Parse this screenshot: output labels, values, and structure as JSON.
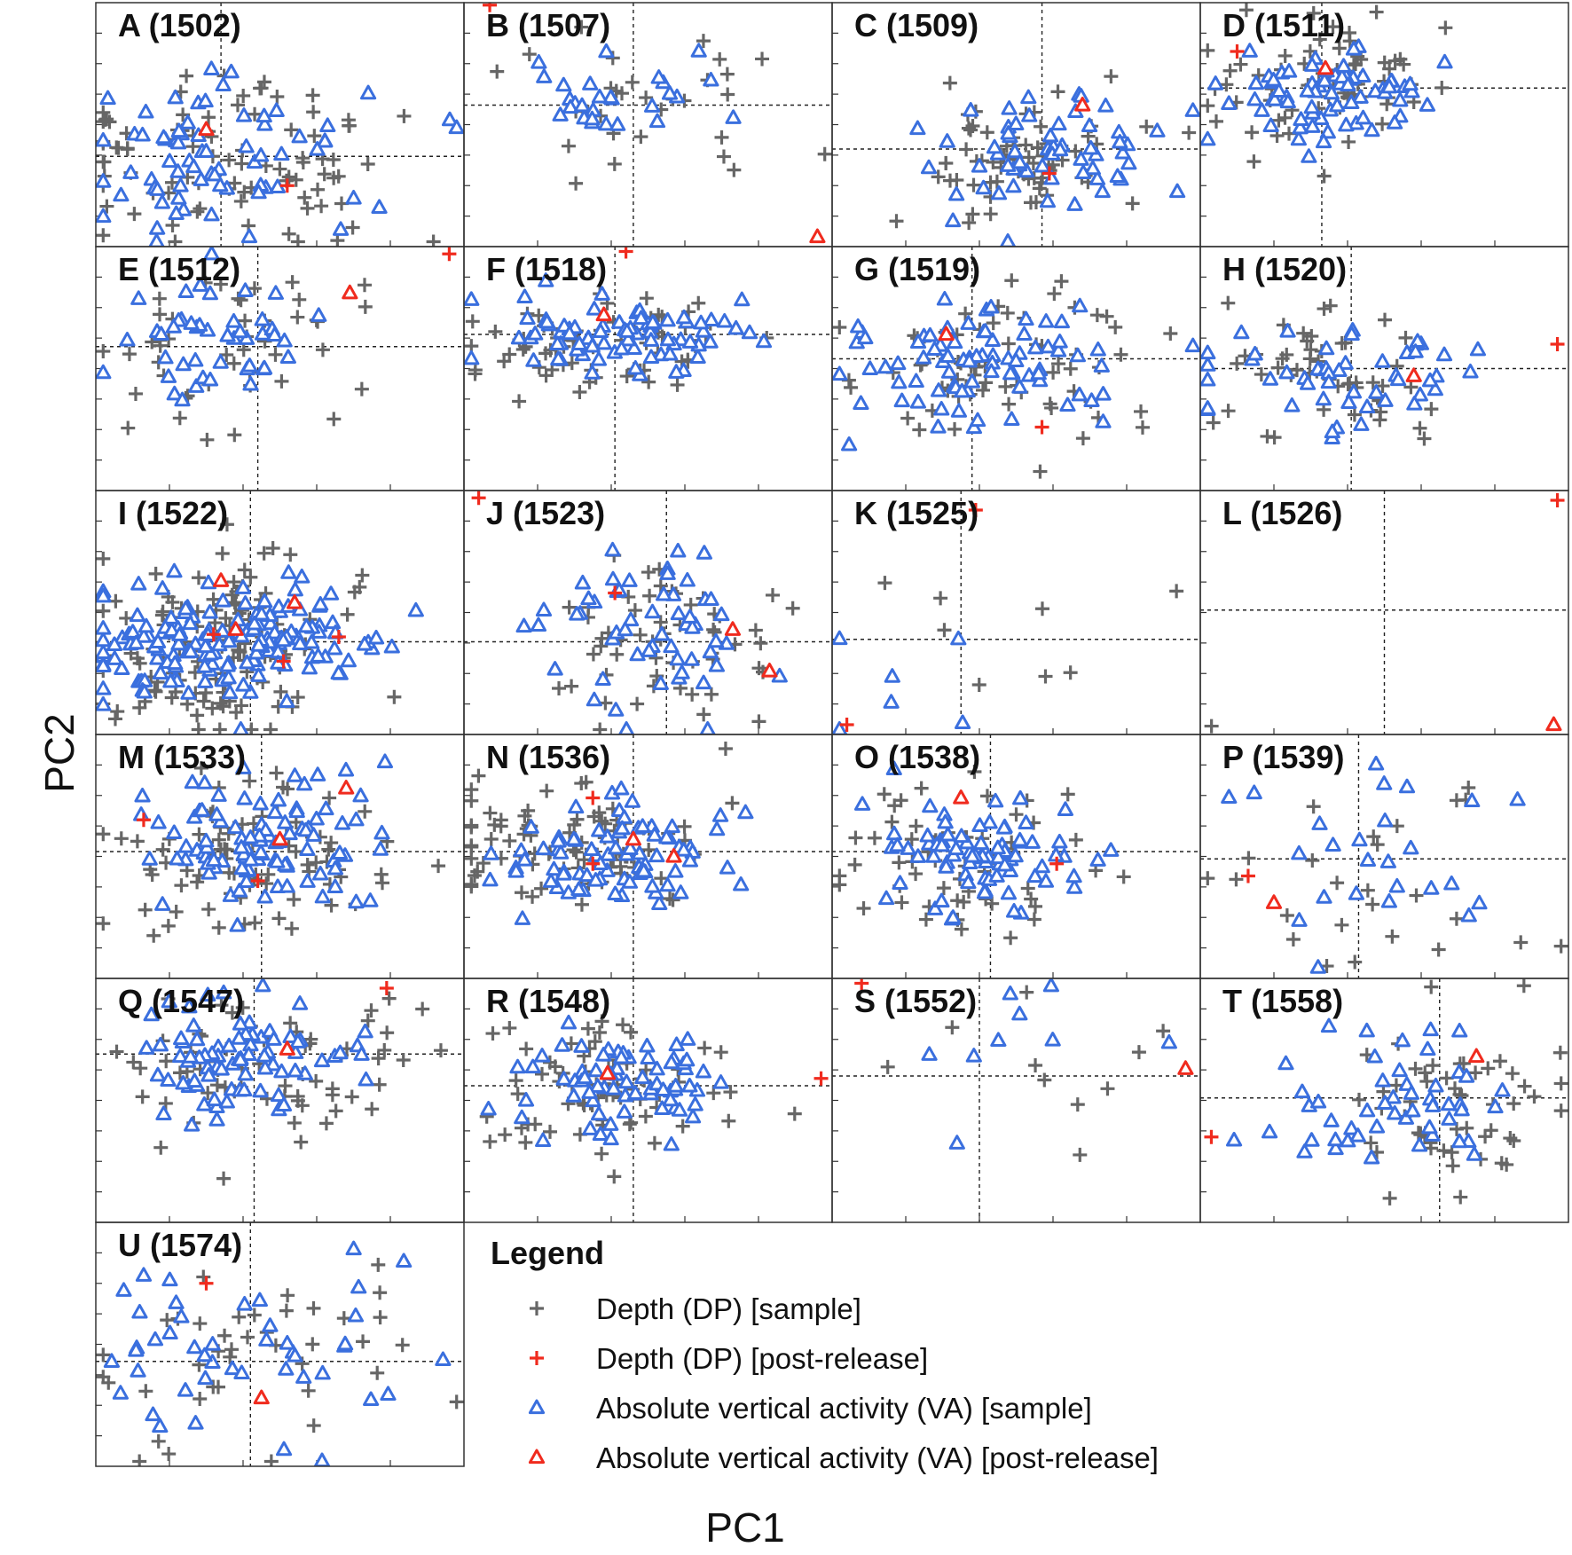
{
  "chart_data": {
    "type": "scatter",
    "xlabel": "PC1",
    "ylabel": "PC2",
    "legend": {
      "title": "Legend",
      "placement": "bottom-right",
      "entries": [
        {
          "key": "dp_sample",
          "label": "Depth (DP) [sample]",
          "marker": "plus",
          "color": "#666666"
        },
        {
          "key": "dp_post",
          "label": "Depth (DP) [post-release]",
          "marker": "plus",
          "color": "#f02b1e"
        },
        {
          "key": "va_sample",
          "label": "Absolute vertical activity (VA) [sample]",
          "marker": "triangle",
          "color": "#3a6fde"
        },
        {
          "key": "va_post",
          "label": "Absolute vertical activity (VA) [post-release]",
          "marker": "triangle",
          "color": "#f02b1e"
        }
      ]
    },
    "colors": {
      "dp_sample": "#666666",
      "va_sample": "#3a6fde",
      "post_release": "#f02b1e",
      "frame": "#333333",
      "guide": "#222222"
    },
    "panels": [
      {
        "label": "A (1502)",
        "origin": [
          0.34,
          0.63
        ],
        "dp": {
          "n": 90,
          "cx": 0.38,
          "cy": 0.63,
          "sx": 0.22,
          "sy": 0.18
        },
        "va": {
          "n": 70,
          "cx": 0.35,
          "cy": 0.62,
          "sx": 0.22,
          "sy": 0.15
        },
        "dp_post": [
          [
            0.52,
            0.75
          ]
        ],
        "va_post": [
          [
            0.3,
            0.52
          ]
        ]
      },
      {
        "label": "B (1507)",
        "origin": [
          0.46,
          0.42
        ],
        "dp": {
          "n": 30,
          "cx": 0.5,
          "cy": 0.4,
          "sx": 0.2,
          "sy": 0.15
        },
        "va": {
          "n": 28,
          "cx": 0.42,
          "cy": 0.4,
          "sx": 0.14,
          "sy": 0.08
        },
        "dp_post": [
          [
            0.07,
            0.01
          ]
        ],
        "va_post": [
          [
            0.96,
            0.96
          ]
        ]
      },
      {
        "label": "C (1509)",
        "origin": [
          0.57,
          0.6
        ],
        "dp": {
          "n": 70,
          "cx": 0.55,
          "cy": 0.62,
          "sx": 0.15,
          "sy": 0.12
        },
        "va": {
          "n": 60,
          "cx": 0.58,
          "cy": 0.6,
          "sx": 0.17,
          "sy": 0.13
        },
        "dp_post": [
          [
            0.59,
            0.7
          ]
        ],
        "va_post": [
          [
            0.68,
            0.42
          ]
        ]
      },
      {
        "label": "D (1511)",
        "origin": [
          0.33,
          0.35
        ],
        "dp": {
          "n": 70,
          "cx": 0.35,
          "cy": 0.35,
          "sx": 0.14,
          "sy": 0.13
        },
        "va": {
          "n": 70,
          "cx": 0.35,
          "cy": 0.37,
          "sx": 0.13,
          "sy": 0.1
        },
        "dp_post": [
          [
            0.1,
            0.2
          ]
        ],
        "va_post": [
          [
            0.34,
            0.27
          ]
        ]
      },
      {
        "label": "E (1512)",
        "origin": [
          0.44,
          0.41
        ],
        "dp": {
          "n": 45,
          "cx": 0.35,
          "cy": 0.4,
          "sx": 0.2,
          "sy": 0.18
        },
        "va": {
          "n": 45,
          "cx": 0.38,
          "cy": 0.42,
          "sx": 0.15,
          "sy": 0.15
        },
        "dp_post": [
          [
            0.96,
            0.03
          ]
        ],
        "va_post": [
          [
            0.69,
            0.19
          ]
        ]
      },
      {
        "label": "F (1518)",
        "origin": [
          0.41,
          0.36
        ],
        "dp": {
          "n": 70,
          "cx": 0.4,
          "cy": 0.4,
          "sx": 0.2,
          "sy": 0.1
        },
        "va": {
          "n": 80,
          "cx": 0.4,
          "cy": 0.37,
          "sx": 0.18,
          "sy": 0.07
        },
        "dp_post": [
          [
            0.44,
            0.02
          ]
        ],
        "va_post": [
          [
            0.38,
            0.28
          ]
        ]
      },
      {
        "label": "G (1519)",
        "origin": [
          0.38,
          0.46
        ],
        "dp": {
          "n": 70,
          "cx": 0.45,
          "cy": 0.47,
          "sx": 0.2,
          "sy": 0.17
        },
        "va": {
          "n": 80,
          "cx": 0.38,
          "cy": 0.46,
          "sx": 0.2,
          "sy": 0.14
        },
        "dp_post": [
          [
            0.57,
            0.74
          ]
        ],
        "va_post": [
          [
            0.31,
            0.36
          ]
        ]
      },
      {
        "label": "H (1520)",
        "origin": [
          0.41,
          0.5
        ],
        "dp": {
          "n": 50,
          "cx": 0.35,
          "cy": 0.5,
          "sx": 0.17,
          "sy": 0.12
        },
        "va": {
          "n": 50,
          "cx": 0.4,
          "cy": 0.52,
          "sx": 0.2,
          "sy": 0.12
        },
        "dp_post": [
          [
            0.97,
            0.4
          ]
        ],
        "va_post": [
          [
            0.58,
            0.53
          ]
        ]
      },
      {
        "label": "I (1522)",
        "origin": [
          0.42,
          0.62
        ],
        "dp": {
          "n": 130,
          "cx": 0.33,
          "cy": 0.62,
          "sx": 0.18,
          "sy": 0.17
        },
        "va": {
          "n": 160,
          "cx": 0.35,
          "cy": 0.63,
          "sx": 0.2,
          "sy": 0.12
        },
        "dp_post": [
          [
            0.32,
            0.59
          ],
          [
            0.51,
            0.7
          ],
          [
            0.66,
            0.6
          ]
        ],
        "va_post": [
          [
            0.34,
            0.37
          ],
          [
            0.38,
            0.57
          ],
          [
            0.54,
            0.46
          ]
        ]
      },
      {
        "label": "J (1523)",
        "origin": [
          0.55,
          0.62
        ],
        "dp": {
          "n": 55,
          "cx": 0.55,
          "cy": 0.6,
          "sx": 0.15,
          "sy": 0.18
        },
        "va": {
          "n": 55,
          "cx": 0.5,
          "cy": 0.58,
          "sx": 0.15,
          "sy": 0.17
        },
        "dp_post": [
          [
            0.04,
            0.03
          ],
          [
            0.41,
            0.42
          ]
        ],
        "va_post": [
          [
            0.73,
            0.57
          ],
          [
            0.83,
            0.74
          ]
        ]
      },
      {
        "label": "K (1525)",
        "origin": [
          0.35,
          0.61
        ],
        "dp": {
          "n": 8,
          "cx": 0.45,
          "cy": 0.6,
          "sx": 0.25,
          "sy": 0.2
        },
        "va": {
          "n": 6,
          "cx": 0.35,
          "cy": 0.65,
          "sx": 0.3,
          "sy": 0.25
        },
        "dp_post": [
          [
            0.04,
            0.96
          ],
          [
            0.39,
            0.08
          ]
        ],
        "va_post": []
      },
      {
        "label": "L (1526)",
        "origin": [
          0.5,
          0.49
        ],
        "dp": {
          "n": 1,
          "cx": 0.03,
          "cy": 0.97,
          "sx": 0.005,
          "sy": 0.005
        },
        "va": {
          "n": 0,
          "cx": 0.5,
          "cy": 0.5,
          "sx": 0.1,
          "sy": 0.1
        },
        "dp_post": [
          [
            0.97,
            0.04
          ]
        ],
        "va_post": [
          [
            0.96,
            0.96
          ]
        ]
      },
      {
        "label": "M (1533)",
        "origin": [
          0.45,
          0.48
        ],
        "dp": {
          "n": 90,
          "cx": 0.4,
          "cy": 0.48,
          "sx": 0.18,
          "sy": 0.16
        },
        "va": {
          "n": 100,
          "cx": 0.45,
          "cy": 0.48,
          "sx": 0.15,
          "sy": 0.14
        },
        "dp_post": [
          [
            0.13,
            0.35
          ],
          [
            0.44,
            0.6
          ]
        ],
        "va_post": [
          [
            0.5,
            0.43
          ],
          [
            0.68,
            0.22
          ]
        ]
      },
      {
        "label": "N (1536)",
        "origin": [
          0.46,
          0.48
        ],
        "dp": {
          "n": 90,
          "cx": 0.3,
          "cy": 0.45,
          "sx": 0.2,
          "sy": 0.12
        },
        "va": {
          "n": 80,
          "cx": 0.42,
          "cy": 0.48,
          "sx": 0.15,
          "sy": 0.12
        },
        "dp_post": [
          [
            0.35,
            0.26
          ],
          [
            0.35,
            0.53
          ]
        ],
        "va_post": [
          [
            0.46,
            0.43
          ],
          [
            0.57,
            0.5
          ]
        ]
      },
      {
        "label": "O (1538)",
        "origin": [
          0.43,
          0.48
        ],
        "dp": {
          "n": 60,
          "cx": 0.35,
          "cy": 0.5,
          "sx": 0.18,
          "sy": 0.15
        },
        "va": {
          "n": 80,
          "cx": 0.4,
          "cy": 0.48,
          "sx": 0.14,
          "sy": 0.12
        },
        "dp_post": [
          [
            0.61,
            0.53
          ]
        ],
        "va_post": [
          [
            0.35,
            0.26
          ]
        ]
      },
      {
        "label": "P (1539)",
        "origin": [
          0.43,
          0.51
        ],
        "dp": {
          "n": 25,
          "cx": 0.45,
          "cy": 0.5,
          "sx": 0.25,
          "sy": 0.22
        },
        "va": {
          "n": 25,
          "cx": 0.45,
          "cy": 0.48,
          "sx": 0.25,
          "sy": 0.22
        },
        "dp_post": [
          [
            0.13,
            0.58
          ]
        ],
        "va_post": [
          [
            0.2,
            0.69
          ]
        ]
      },
      {
        "label": "Q (1547)",
        "origin": [
          0.43,
          0.31
        ],
        "dp": {
          "n": 70,
          "cx": 0.45,
          "cy": 0.38,
          "sx": 0.2,
          "sy": 0.18
        },
        "va": {
          "n": 80,
          "cx": 0.4,
          "cy": 0.33,
          "sx": 0.18,
          "sy": 0.12
        },
        "dp_post": [
          [
            0.79,
            0.04
          ]
        ],
        "va_post": [
          [
            0.52,
            0.29
          ]
        ]
      },
      {
        "label": "R (1548)",
        "origin": [
          0.46,
          0.44
        ],
        "dp": {
          "n": 70,
          "cx": 0.4,
          "cy": 0.45,
          "sx": 0.2,
          "sy": 0.14
        },
        "va": {
          "n": 70,
          "cx": 0.42,
          "cy": 0.44,
          "sx": 0.14,
          "sy": 0.11
        },
        "dp_post": [
          [
            0.97,
            0.41
          ]
        ],
        "va_post": [
          [
            0.39,
            0.39
          ]
        ]
      },
      {
        "label": "S (1552)",
        "origin": [
          0.4,
          0.4
        ],
        "dp": {
          "n": 10,
          "cx": 0.5,
          "cy": 0.45,
          "sx": 0.2,
          "sy": 0.2
        },
        "va": {
          "n": 9,
          "cx": 0.4,
          "cy": 0.35,
          "sx": 0.15,
          "sy": 0.2
        },
        "dp_post": [
          [
            0.08,
            0.02
          ]
        ],
        "va_post": [
          [
            0.96,
            0.37
          ]
        ]
      },
      {
        "label": "T (1558)",
        "origin": [
          0.65,
          0.49
        ],
        "dp": {
          "n": 55,
          "cx": 0.65,
          "cy": 0.5,
          "sx": 0.15,
          "sy": 0.18
        },
        "va": {
          "n": 50,
          "cx": 0.55,
          "cy": 0.5,
          "sx": 0.15,
          "sy": 0.18
        },
        "dp_post": [
          [
            0.03,
            0.65
          ]
        ],
        "va_post": [
          [
            0.75,
            0.32
          ]
        ]
      },
      {
        "label": "U (1574)",
        "origin": [
          0.42,
          0.57
        ],
        "dp": {
          "n": 40,
          "cx": 0.45,
          "cy": 0.55,
          "sx": 0.25,
          "sy": 0.2
        },
        "va": {
          "n": 45,
          "cx": 0.4,
          "cy": 0.55,
          "sx": 0.25,
          "sy": 0.2
        },
        "dp_post": [
          [
            0.3,
            0.25
          ]
        ],
        "va_post": [
          [
            0.45,
            0.72
          ]
        ]
      }
    ]
  }
}
